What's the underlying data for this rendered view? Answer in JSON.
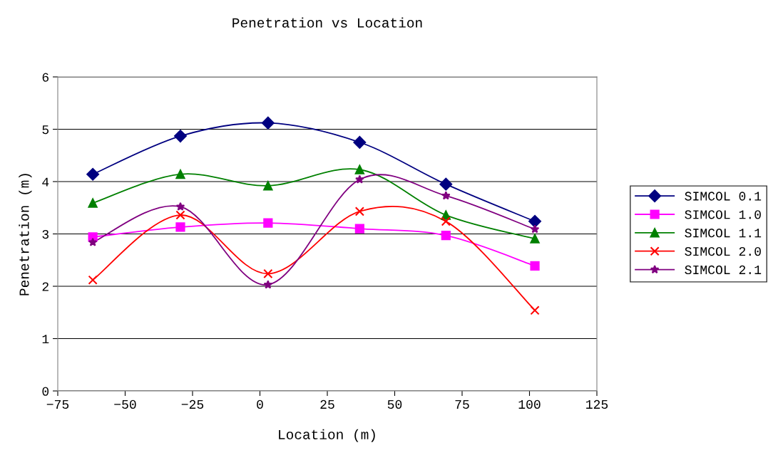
{
  "chart_data": {
    "type": "line",
    "title": "Penetration vs Location",
    "xlabel": "Location (m)",
    "ylabel": "Penetration (m)",
    "x": [
      -62,
      -29.5,
      3,
      37,
      69,
      102
    ],
    "series": [
      {
        "name": "SIMCOL 0.1",
        "color": "#000080",
        "marker": "diamond",
        "values": [
          4.14,
          4.87,
          5.12,
          4.75,
          3.95,
          3.24
        ]
      },
      {
        "name": "SIMCOL 1.0",
        "color": "#ff00ff",
        "marker": "square",
        "values": [
          2.94,
          3.13,
          3.21,
          3.1,
          2.97,
          2.39
        ]
      },
      {
        "name": "SIMCOL 1.1",
        "color": "#008000",
        "marker": "triangle",
        "values": [
          3.59,
          4.14,
          3.92,
          4.23,
          3.36,
          2.91
        ]
      },
      {
        "name": "SIMCOL 2.0",
        "color": "#ff0000",
        "marker": "cross",
        "values": [
          2.12,
          3.36,
          2.24,
          3.43,
          3.24,
          1.54
        ]
      },
      {
        "name": "SIMCOL 2.1",
        "color": "#800080",
        "marker": "star",
        "values": [
          2.84,
          3.52,
          2.03,
          4.04,
          3.73,
          3.09
        ]
      }
    ],
    "xlim": [
      -75,
      125
    ],
    "xticks": [
      {
        "value": -75,
        "label": "−75"
      },
      {
        "value": -50,
        "label": "−50"
      },
      {
        "value": -25,
        "label": "−25"
      },
      0,
      25,
      50,
      75,
      100,
      125
    ],
    "ylim": [
      0,
      6
    ],
    "yticks": [
      0,
      1,
      2,
      3,
      4,
      5,
      6
    ],
    "grid": "y",
    "legend": "right",
    "line_style": "solid"
  }
}
